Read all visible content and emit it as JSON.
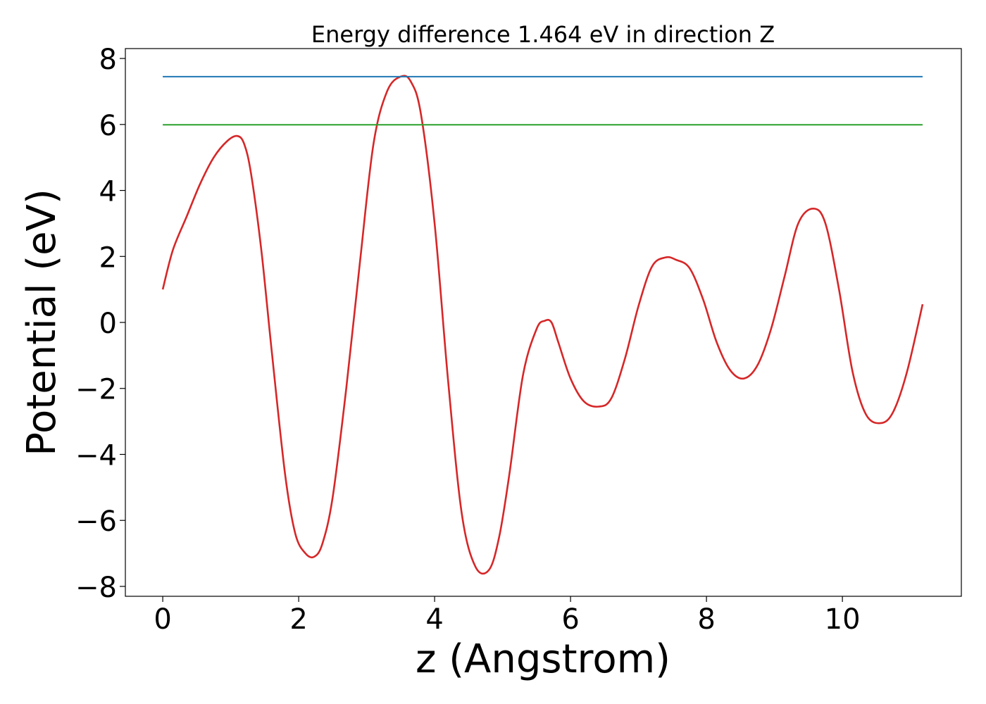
{
  "chart_data": {
    "type": "line",
    "title": "Energy difference 1.464 eV in direction Z",
    "xlabel": "z (Angstrom)",
    "ylabel": "Potential (eV)",
    "xlim": [
      -0.55,
      11.75
    ],
    "ylim": [
      -8.3,
      8.3
    ],
    "xticks": [
      0,
      2,
      4,
      6,
      8,
      10
    ],
    "xtick_labels": [
      "0",
      "2",
      "4",
      "6",
      "8",
      "10"
    ],
    "yticks": [
      -8,
      -6,
      -4,
      -2,
      0,
      2,
      4,
      6,
      8
    ],
    "ytick_labels": [
      "−8",
      "−6",
      "−4",
      "−2",
      "0",
      "2",
      "4",
      "6",
      "8"
    ],
    "grid": false,
    "series": [
      {
        "color": "#d62728",
        "kind": "curve",
        "x": [
          0.0,
          0.15,
          0.35,
          0.55,
          0.75,
          0.95,
          1.1,
          1.2,
          1.3,
          1.45,
          1.6,
          1.8,
          1.95,
          2.1,
          2.23,
          2.35,
          2.5,
          2.7,
          2.9,
          3.1,
          3.3,
          3.5,
          3.65,
          3.8,
          4.0,
          4.2,
          4.4,
          4.6,
          4.8,
          4.95,
          5.1,
          5.3,
          5.5,
          5.62,
          5.72,
          5.82,
          6.0,
          6.2,
          6.42,
          6.6,
          6.8,
          7.0,
          7.2,
          7.4,
          7.55,
          7.75,
          7.95,
          8.15,
          8.35,
          8.55,
          8.75,
          8.95,
          9.15,
          9.35,
          9.57,
          9.75,
          9.95,
          10.15,
          10.35,
          10.57,
          10.75,
          10.95,
          11.18
        ],
        "y": [
          1.0,
          2.2,
          3.2,
          4.2,
          5.0,
          5.5,
          5.65,
          5.4,
          4.5,
          2.2,
          -0.8,
          -4.6,
          -6.4,
          -7.0,
          -7.1,
          -6.7,
          -5.3,
          -2.0,
          1.8,
          5.4,
          7.0,
          7.45,
          7.3,
          6.3,
          3.0,
          -1.8,
          -5.8,
          -7.4,
          -7.5,
          -6.5,
          -4.6,
          -1.6,
          -0.2,
          0.05,
          0.0,
          -0.6,
          -1.7,
          -2.4,
          -2.55,
          -2.3,
          -1.1,
          0.5,
          1.7,
          1.97,
          1.9,
          1.65,
          0.7,
          -0.6,
          -1.45,
          -1.7,
          -1.3,
          -0.2,
          1.4,
          3.0,
          3.45,
          3.0,
          1.0,
          -1.5,
          -2.8,
          -3.05,
          -2.7,
          -1.5,
          0.55
        ]
      },
      {
        "color": "#1f77b4",
        "kind": "hline",
        "x": [
          0.0,
          11.18
        ],
        "y": [
          7.45,
          7.45
        ]
      },
      {
        "color": "#2ca02c",
        "kind": "hline",
        "x": [
          0.0,
          11.18
        ],
        "y": [
          5.99,
          5.99
        ]
      }
    ]
  }
}
